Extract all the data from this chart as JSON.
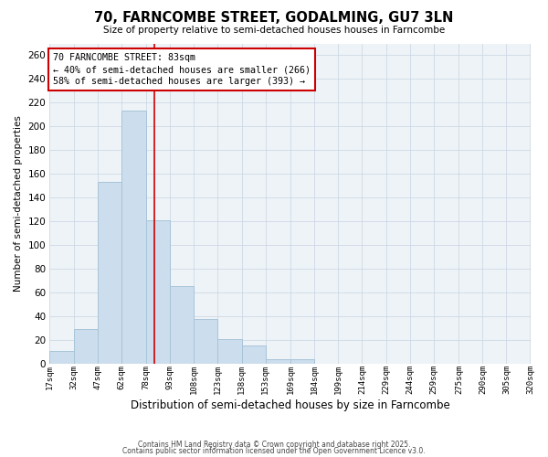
{
  "title": "70, FARNCOMBE STREET, GODALMING, GU7 3LN",
  "subtitle": "Size of property relative to semi-detached houses houses in Farncombe",
  "xlabel": "Distribution of semi-detached houses by size in Farncombe",
  "ylabel": "Number of semi-detached properties",
  "bar_color": "#ccdded",
  "bar_edgecolor": "#a8c4d8",
  "background_color": "#ffffff",
  "plot_bg_color": "#eef3f8",
  "grid_color": "#c8d4e0",
  "annotation_line_color": "#cc0000",
  "annotation_box_edgecolor": "#cc0000",
  "annotation_text_line1": "70 FARNCOMBE STREET: 83sqm",
  "annotation_text_line2": "← 40% of semi-detached houses are smaller (266)",
  "annotation_text_line3": "58% of semi-detached houses are larger (393) →",
  "property_size": 83,
  "bin_edges": [
    17,
    32,
    47,
    62,
    78,
    93,
    108,
    123,
    138,
    153,
    169,
    184,
    199,
    214,
    229,
    244,
    259,
    275,
    290,
    305,
    320
  ],
  "bin_labels": [
    "17sqm",
    "32sqm",
    "47sqm",
    "62sqm",
    "78sqm",
    "93sqm",
    "108sqm",
    "123sqm",
    "138sqm",
    "153sqm",
    "169sqm",
    "184sqm",
    "199sqm",
    "214sqm",
    "229sqm",
    "244sqm",
    "259sqm",
    "275sqm",
    "290sqm",
    "305sqm",
    "320sqm"
  ],
  "counts": [
    11,
    29,
    153,
    213,
    121,
    65,
    38,
    21,
    15,
    4,
    4,
    0,
    0,
    0,
    0,
    0,
    0,
    0,
    0,
    0
  ],
  "ylim": [
    0,
    270
  ],
  "yticks": [
    0,
    20,
    40,
    60,
    80,
    100,
    120,
    140,
    160,
    180,
    200,
    220,
    240,
    260
  ],
  "footer_line1": "Contains HM Land Registry data © Crown copyright and database right 2025.",
  "footer_line2": "Contains public sector information licensed under the Open Government Licence v3.0."
}
